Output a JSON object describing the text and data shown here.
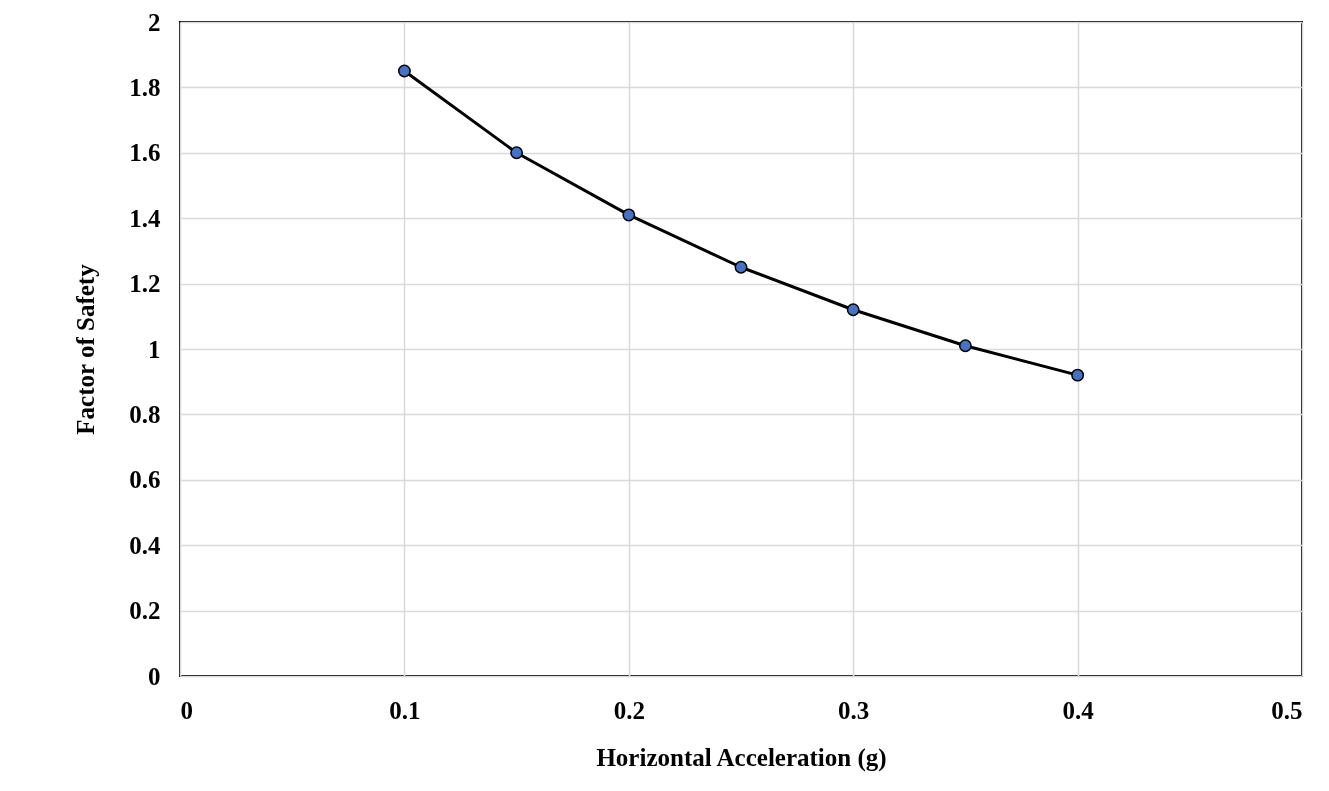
{
  "chart_data": {
    "type": "line",
    "xlabel": "Horizontal Acceleration (g)",
    "ylabel": "Factor of Safety",
    "x": [
      0.1,
      0.15,
      0.2,
      0.25,
      0.3,
      0.35,
      0.4
    ],
    "series": [
      {
        "color": "#000000",
        "values": [
          1.85,
          1.6,
          1.41,
          1.25,
          1.12,
          1.01,
          0.92
        ]
      }
    ],
    "xlim": [
      0,
      0.5
    ],
    "xticks": [
      0,
      0.1,
      0.2,
      0.3,
      0.4,
      0.5
    ],
    "ylim": [
      0,
      2
    ],
    "yticks": [
      0,
      0.2,
      0.4,
      0.6,
      0.8,
      1,
      1.2,
      1.4,
      1.6,
      1.8,
      2
    ],
    "grid": true,
    "marker": "circle",
    "line_style": "solid"
  }
}
